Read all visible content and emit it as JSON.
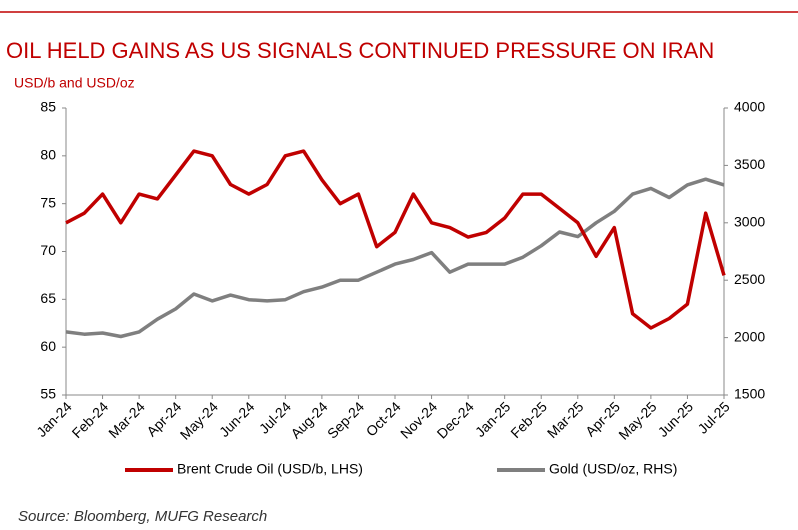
{
  "chart_data": {
    "type": "line",
    "title": "OIL HELD GAINS AS US SIGNALS CONTINUED PRESSURE ON IRAN",
    "ylabel": "USD/b and USD/oz",
    "source": "Source: Bloomberg, MUFG Research",
    "categories": [
      "Jan-24",
      null,
      "Feb-24",
      null,
      "Mar-24",
      null,
      "Apr-24",
      null,
      "May-24",
      null,
      "Jun-24",
      null,
      "Jul-24",
      null,
      "Aug-24",
      null,
      "Sep-24",
      null,
      "Oct-24",
      null,
      "Nov-24",
      null,
      "Dec-24",
      null,
      "Jan-25",
      null,
      "Feb-25",
      null,
      "Mar-25",
      null,
      "Apr-25",
      null,
      "May-25",
      null,
      "Jun-25",
      null,
      "Jul-25"
    ],
    "series": [
      {
        "name": "Brent Crude Oil (USD/b, LHS)",
        "color": "#c00000",
        "axis": "y",
        "values": [
          73,
          74,
          76,
          73,
          76,
          75.5,
          78,
          80.5,
          80,
          77,
          76,
          77,
          80,
          80.5,
          77.5,
          75,
          76,
          70.5,
          72,
          76,
          73,
          72.5,
          71.5,
          72,
          73.5,
          76,
          76,
          74.5,
          73,
          69.5,
          72.5,
          63.5,
          62,
          63,
          64.5,
          74,
          67.5
        ]
      },
      {
        "name": "Gold (USD/oz, RHS)",
        "color": "#7f7f7f",
        "axis": "y2",
        "values": [
          2050,
          2030,
          2040,
          2010,
          2050,
          2160,
          2250,
          2380,
          2320,
          2370,
          2330,
          2320,
          2330,
          2400,
          2440,
          2500,
          2500,
          2570,
          2640,
          2680,
          2740,
          2570,
          2640,
          2640,
          2640,
          2700,
          2800,
          2920,
          2880,
          3000,
          3100,
          3250,
          3300,
          3220,
          3330,
          3380,
          3330
        ]
      }
    ],
    "ylim": [
      55,
      85
    ],
    "yticks": [
      55,
      60,
      65,
      70,
      75,
      80,
      85
    ],
    "y2lim": [
      1500,
      4000
    ],
    "y2ticks": [
      1500,
      2000,
      2500,
      3000,
      3500,
      4000
    ],
    "legend": "bottom"
  }
}
